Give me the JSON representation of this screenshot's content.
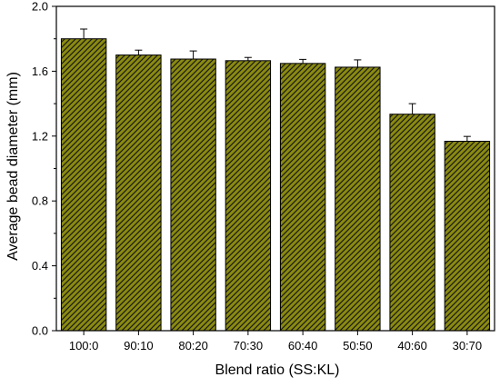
{
  "chart_data": {
    "type": "bar",
    "title": "",
    "xlabel": "Blend ratio (SS:KL)",
    "ylabel": "Average bead diameter (mm)",
    "categories": [
      "100:0",
      "90:10",
      "80:20",
      "70:30",
      "60:40",
      "50:50",
      "40:60",
      "30:70"
    ],
    "values": [
      1.8,
      1.7,
      1.675,
      1.665,
      1.648,
      1.625,
      1.335,
      1.168
    ],
    "errors": [
      0.06,
      0.03,
      0.05,
      0.02,
      0.025,
      0.045,
      0.065,
      0.03
    ],
    "ylim": [
      0.0,
      2.0
    ],
    "yticks": [
      "0.0",
      "0.4",
      "0.8",
      "1.2",
      "1.6",
      "2.0"
    ],
    "ytick_values": [
      0.0,
      0.4,
      0.8,
      1.2,
      1.6,
      2.0
    ],
    "grid": false,
    "legend": "none",
    "bar_fill": "#8a8a10",
    "hatch_color": "#1a1a1a",
    "hatch_pattern": "diagonal"
  }
}
